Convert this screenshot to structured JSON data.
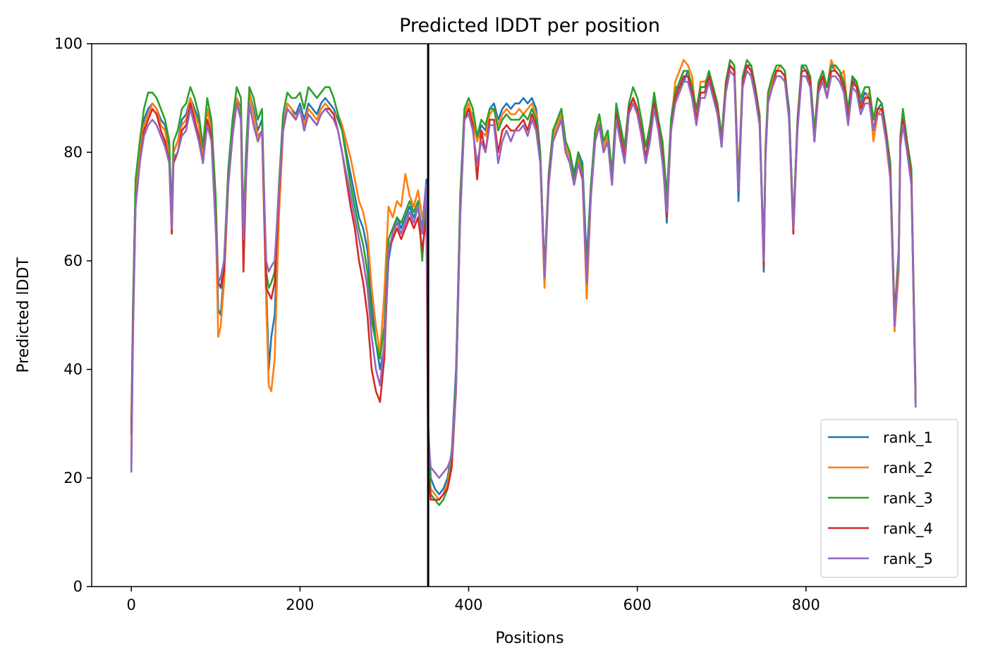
{
  "chart_data": {
    "type": "line",
    "title": "Predicted lDDT per position",
    "xlabel": "Positions",
    "ylabel": "Predicted lDDT",
    "xlim": [
      -47,
      990
    ],
    "ylim": [
      0,
      100
    ],
    "xticks": [
      0,
      200,
      400,
      600,
      800
    ],
    "yticks": [
      0,
      20,
      40,
      60,
      80,
      100
    ],
    "grid": false,
    "legend_position": "lower-right",
    "vertical_line_x": 352,
    "sample_positions": [
      0,
      2,
      5,
      10,
      15,
      20,
      25,
      30,
      35,
      40,
      45,
      48,
      50,
      55,
      60,
      65,
      70,
      75,
      80,
      85,
      90,
      95,
      100,
      103,
      106,
      110,
      115,
      120,
      125,
      130,
      133,
      136,
      140,
      145,
      150,
      155,
      160,
      163,
      166,
      170,
      175,
      180,
      185,
      190,
      195,
      200,
      205,
      210,
      215,
      220,
      225,
      230,
      235,
      240,
      245,
      250,
      255,
      260,
      265,
      270,
      275,
      280,
      285,
      290,
      295,
      300,
      305,
      310,
      315,
      320,
      325,
      330,
      335,
      340,
      345,
      350,
      352,
      355,
      360,
      365,
      370,
      375,
      380,
      385,
      390,
      395,
      400,
      405,
      410,
      415,
      420,
      425,
      430,
      435,
      440,
      445,
      450,
      455,
      460,
      465,
      470,
      475,
      480,
      485,
      490,
      495,
      500,
      505,
      510,
      515,
      520,
      525,
      530,
      535,
      540,
      545,
      550,
      555,
      560,
      565,
      570,
      575,
      580,
      585,
      590,
      595,
      600,
      605,
      610,
      615,
      620,
      625,
      630,
      635,
      640,
      645,
      650,
      655,
      660,
      665,
      670,
      675,
      680,
      685,
      690,
      695,
      700,
      705,
      710,
      715,
      720,
      725,
      730,
      735,
      740,
      745,
      750,
      752,
      755,
      760,
      765,
      770,
      775,
      780,
      785,
      790,
      795,
      800,
      805,
      810,
      815,
      820,
      825,
      830,
      835,
      840,
      845,
      850,
      855,
      860,
      865,
      870,
      875,
      880,
      885,
      890,
      895,
      900,
      905,
      910,
      912,
      915,
      920,
      925,
      930,
      935,
      940
    ],
    "series": [
      {
        "name": "rank_1",
        "color": "#1f77b4",
        "values": [
          22,
          48,
          73,
          80,
          86,
          88,
          89,
          88,
          86,
          85,
          80,
          67,
          80,
          82,
          86,
          87,
          90,
          88,
          86,
          80,
          88,
          85,
          70,
          51,
          50,
          58,
          75,
          84,
          90,
          88,
          65,
          78,
          91,
          88,
          84,
          86,
          56,
          40,
          46,
          50,
          70,
          85,
          89,
          88,
          87,
          89,
          86,
          89,
          88,
          87,
          89,
          90,
          89,
          88,
          86,
          84,
          80,
          76,
          72,
          68,
          66,
          62,
          52,
          45,
          40,
          44,
          60,
          65,
          68,
          66,
          68,
          70,
          68,
          70,
          66,
          75,
          30,
          20,
          18,
          17,
          18,
          20,
          25,
          40,
          70,
          86,
          88,
          87,
          82,
          85,
          84,
          88,
          89,
          86,
          88,
          89,
          88,
          89,
          89,
          90,
          89,
          90,
          88,
          80,
          58,
          76,
          84,
          86,
          88,
          82,
          80,
          76,
          80,
          78,
          60,
          74,
          84,
          86,
          82,
          84,
          76,
          88,
          84,
          80,
          88,
          90,
          88,
          84,
          79,
          84,
          90,
          86,
          80,
          67,
          86,
          92,
          92,
          93,
          95,
          92,
          86,
          92,
          92,
          94,
          91,
          88,
          82,
          92,
          96,
          95,
          71,
          93,
          96,
          96,
          91,
          87,
          58,
          80,
          90,
          93,
          95,
          95,
          94,
          88,
          66,
          86,
          96,
          95,
          94,
          82,
          93,
          94,
          92,
          96,
          95,
          94,
          92,
          87,
          94,
          92,
          89,
          91,
          90,
          84,
          88,
          89,
          84,
          77,
          48,
          60,
          82,
          86,
          81,
          75,
          33
        ]
      },
      {
        "name": "rank_2",
        "color": "#ff7f0e",
        "values": [
          25,
          50,
          72,
          80,
          85,
          87,
          89,
          88,
          85,
          84,
          79,
          65,
          80,
          82,
          85,
          86,
          90,
          87,
          85,
          79,
          88,
          84,
          68,
          46,
          48,
          56,
          74,
          83,
          90,
          87,
          63,
          77,
          91,
          87,
          83,
          84,
          52,
          37,
          36,
          42,
          68,
          84,
          89,
          88,
          86,
          88,
          85,
          88,
          87,
          86,
          88,
          89,
          88,
          87,
          87,
          85,
          82,
          79,
          75,
          71,
          69,
          65,
          55,
          48,
          43,
          54,
          70,
          68,
          71,
          70,
          76,
          72,
          70,
          73,
          68,
          70,
          24,
          18,
          17,
          16,
          17,
          19,
          24,
          38,
          70,
          87,
          89,
          86,
          82,
          84,
          83,
          87,
          88,
          85,
          87,
          88,
          87,
          87,
          88,
          87,
          88,
          89,
          87,
          79,
          55,
          75,
          83,
          85,
          87,
          81,
          79,
          75,
          79,
          76,
          53,
          72,
          83,
          86,
          81,
          83,
          75,
          87,
          83,
          80,
          88,
          90,
          87,
          83,
          78,
          83,
          89,
          85,
          80,
          70,
          85,
          93,
          95,
          97,
          96,
          94,
          86,
          93,
          93,
          94,
          92,
          89,
          82,
          92,
          97,
          96,
          75,
          94,
          96,
          95,
          91,
          86,
          60,
          79,
          90,
          93,
          95,
          96,
          95,
          86,
          65,
          85,
          94,
          94,
          93,
          83,
          92,
          94,
          92,
          97,
          95,
          94,
          95,
          87,
          92,
          93,
          88,
          90,
          91,
          82,
          87,
          88,
          83,
          76,
          47,
          58,
          82,
          87,
          80,
          74,
          35
        ]
      },
      {
        "name": "rank_3",
        "color": "#2ca02c",
        "values": [
          30,
          52,
          75,
          82,
          88,
          91,
          91,
          90,
          88,
          86,
          82,
          68,
          82,
          84,
          88,
          89,
          92,
          90,
          87,
          81,
          90,
          86,
          72,
          56,
          55,
          60,
          77,
          86,
          92,
          90,
          66,
          80,
          92,
          90,
          86,
          88,
          58,
          55,
          56,
          58,
          74,
          87,
          91,
          90,
          90,
          91,
          88,
          92,
          91,
          90,
          91,
          92,
          92,
          90,
          87,
          84,
          79,
          74,
          70,
          66,
          63,
          58,
          49,
          45,
          42,
          48,
          64,
          66,
          68,
          67,
          69,
          71,
          69,
          71,
          60,
          72,
          26,
          17,
          16,
          15,
          16,
          18,
          23,
          38,
          72,
          88,
          90,
          88,
          83,
          86,
          85,
          88,
          88,
          84,
          86,
          87,
          86,
          86,
          86,
          87,
          86,
          88,
          86,
          80,
          58,
          76,
          84,
          86,
          88,
          82,
          80,
          75,
          80,
          77,
          58,
          74,
          84,
          87,
          82,
          84,
          76,
          89,
          85,
          81,
          89,
          92,
          90,
          86,
          81,
          85,
          91,
          86,
          82,
          72,
          86,
          91,
          93,
          95,
          95,
          92,
          88,
          92,
          92,
          95,
          92,
          89,
          83,
          93,
          97,
          96,
          74,
          94,
          97,
          96,
          92,
          87,
          61,
          81,
          91,
          94,
          96,
          96,
          95,
          87,
          67,
          86,
          96,
          96,
          94,
          84,
          93,
          95,
          92,
          96,
          96,
          95,
          93,
          88,
          94,
          93,
          90,
          92,
          92,
          86,
          90,
          89,
          84,
          78,
          50,
          62,
          83,
          88,
          82,
          77,
          36
        ]
      },
      {
        "name": "rank_4",
        "color": "#d62728",
        "values": [
          28,
          48,
          70,
          78,
          84,
          86,
          88,
          87,
          84,
          82,
          78,
          65,
          78,
          80,
          84,
          85,
          89,
          86,
          83,
          78,
          86,
          83,
          67,
          56,
          55,
          58,
          74,
          83,
          89,
          86,
          58,
          75,
          89,
          85,
          82,
          84,
          55,
          54,
          53,
          56,
          72,
          84,
          88,
          87,
          86,
          88,
          84,
          87,
          86,
          85,
          87,
          88,
          88,
          87,
          84,
          80,
          75,
          70,
          66,
          60,
          56,
          50,
          40,
          36,
          34,
          42,
          62,
          64,
          66,
          64,
          66,
          68,
          66,
          68,
          62,
          68,
          22,
          16,
          16,
          16,
          17,
          18,
          22,
          36,
          68,
          86,
          88,
          85,
          75,
          84,
          80,
          86,
          86,
          80,
          84,
          85,
          84,
          84,
          85,
          86,
          84,
          87,
          85,
          78,
          57,
          75,
          82,
          84,
          86,
          80,
          78,
          74,
          78,
          75,
          56,
          72,
          82,
          85,
          80,
          82,
          74,
          87,
          83,
          79,
          88,
          90,
          88,
          84,
          79,
          83,
          89,
          85,
          79,
          68,
          84,
          90,
          92,
          94,
          94,
          91,
          86,
          91,
          91,
          94,
          91,
          88,
          81,
          92,
          96,
          95,
          73,
          93,
          96,
          95,
          91,
          86,
          59,
          79,
          89,
          92,
          95,
          95,
          94,
          86,
          65,
          85,
          95,
          95,
          93,
          82,
          92,
          94,
          90,
          95,
          95,
          94,
          92,
          86,
          93,
          92,
          88,
          90,
          90,
          84,
          88,
          88,
          83,
          76,
          49,
          60,
          82,
          86,
          81,
          75,
          34
        ]
      },
      {
        "name": "rank_5",
        "color": "#9467bd",
        "values": [
          21,
          46,
          70,
          78,
          83,
          85,
          86,
          85,
          83,
          81,
          78,
          66,
          79,
          80,
          83,
          84,
          88,
          85,
          82,
          78,
          85,
          82,
          66,
          56,
          57,
          60,
          74,
          83,
          89,
          86,
          64,
          76,
          89,
          85,
          82,
          84,
          60,
          58,
          59,
          60,
          73,
          84,
          88,
          87,
          86,
          88,
          84,
          87,
          86,
          85,
          87,
          88,
          87,
          86,
          84,
          80,
          76,
          72,
          68,
          64,
          60,
          55,
          46,
          40,
          37,
          45,
          62,
          65,
          67,
          65,
          67,
          69,
          67,
          70,
          65,
          74,
          28,
          22,
          21,
          20,
          21,
          22,
          24,
          36,
          68,
          86,
          87,
          84,
          78,
          82,
          80,
          85,
          85,
          78,
          82,
          84,
          82,
          84,
          84,
          85,
          83,
          86,
          84,
          78,
          57,
          74,
          82,
          84,
          86,
          80,
          78,
          74,
          78,
          76,
          56,
          72,
          82,
          85,
          80,
          82,
          74,
          86,
          82,
          78,
          87,
          89,
          87,
          83,
          78,
          82,
          88,
          84,
          78,
          69,
          84,
          89,
          91,
          93,
          93,
          90,
          85,
          90,
          90,
          93,
          90,
          87,
          81,
          91,
          95,
          94,
          73,
          92,
          95,
          94,
          90,
          85,
          60,
          79,
          89,
          92,
          94,
          94,
          93,
          86,
          66,
          84,
          94,
          94,
          92,
          82,
          91,
          93,
          90,
          94,
          94,
          93,
          91,
          85,
          92,
          91,
          87,
          89,
          89,
          84,
          87,
          87,
          82,
          75,
          48,
          60,
          81,
          85,
          80,
          74,
          33
        ]
      }
    ]
  }
}
